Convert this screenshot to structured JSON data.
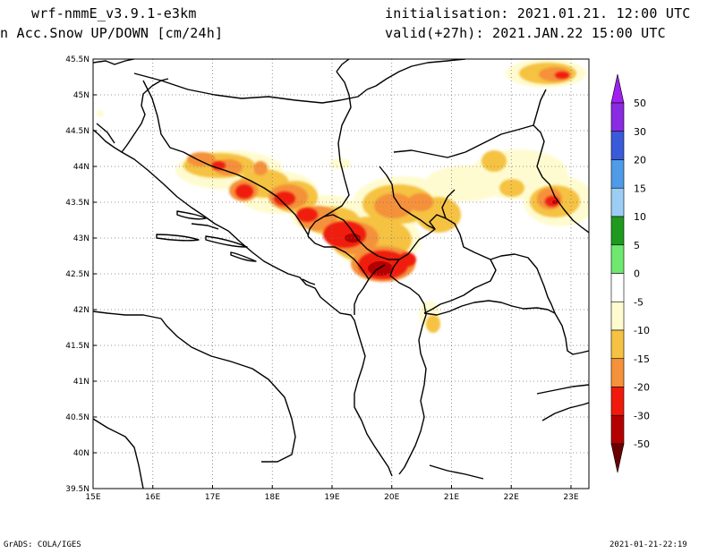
{
  "titles": {
    "model": "wrf-nmmE_v3.9.1-e3km",
    "field": "n Acc.Snow UP/DOWN [cm/24h]",
    "init": "initialisation: 2021.01.21.  12:00 UTC",
    "valid": "valid(+27h): 2021.JAN.22 15:00 UTC"
  },
  "footer": {
    "left": "GrADS: COLA/IGES",
    "right": "2021-01-21-22:19"
  },
  "map": {
    "lon_labels": [
      "15E",
      "16E",
      "17E",
      "18E",
      "19E",
      "20E",
      "21E",
      "22E",
      "23E"
    ],
    "lat_labels": [
      "45.5N",
      "45N",
      "44.5N",
      "44N",
      "43.5N",
      "43N",
      "42.5N",
      "42N",
      "41.5N",
      "41N",
      "40.5N",
      "40N",
      "39.5N"
    ],
    "lon_range": [
      15,
      23.3
    ],
    "lat_range": [
      39.5,
      45.5
    ]
  },
  "legend": {
    "labels": [
      "50",
      "30",
      "20",
      "15",
      "10",
      "5",
      "0",
      "-5",
      "-10",
      "-15",
      "-20",
      "-30",
      "-50"
    ],
    "colors": [
      "#8a2be2",
      "#3a5bd9",
      "#4f9be8",
      "#9ccef5",
      "#1f9a1f",
      "#6ee86e",
      "#ffffff",
      "#fffbd0",
      "#f5c243",
      "#f5913a",
      "#f01a0c",
      "#b50000"
    ],
    "top_color": "#a020f0",
    "bottom_color": "#6b0000"
  },
  "snow_colors": {
    "c5": "#fffbd0",
    "c10": "#f5c243",
    "c15": "#f5913a",
    "c20": "#f01a0c",
    "c30": "#b50000"
  }
}
